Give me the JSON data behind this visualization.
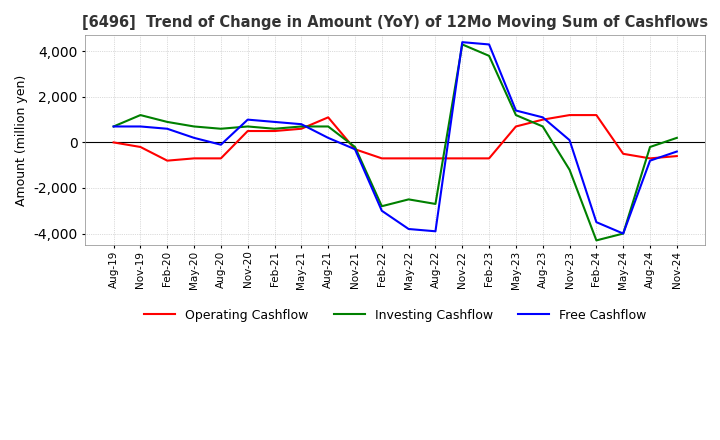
{
  "title": "[6496]  Trend of Change in Amount (YoY) of 12Mo Moving Sum of Cashflows",
  "ylabel": "Amount (million yen)",
  "ylim": [
    -4500,
    4700
  ],
  "yticks": [
    -4000,
    -2000,
    0,
    2000,
    4000
  ],
  "background_color": "#ffffff",
  "grid_color": "#bbbbbb",
  "x_labels": [
    "Aug-19",
    "Nov-19",
    "Feb-20",
    "May-20",
    "Aug-20",
    "Nov-20",
    "Feb-21",
    "May-21",
    "Aug-21",
    "Nov-21",
    "Feb-22",
    "May-22",
    "Aug-22",
    "Nov-22",
    "Feb-23",
    "May-23",
    "Aug-23",
    "Nov-23",
    "Feb-24",
    "May-24",
    "Aug-24",
    "Nov-24"
  ],
  "operating_cashflow": [
    0,
    -200,
    -800,
    -700,
    -700,
    500,
    500,
    600,
    1100,
    -300,
    -700,
    -700,
    -700,
    -700,
    -700,
    700,
    1000,
    1200,
    1200,
    -500,
    -700,
    -600
  ],
  "investing_cashflow": [
    700,
    1200,
    900,
    700,
    600,
    700,
    600,
    700,
    700,
    -200,
    -2800,
    -2500,
    -2700,
    4300,
    3800,
    1200,
    700,
    -1200,
    -4300,
    -4000,
    -200,
    200
  ],
  "free_cashflow": [
    700,
    700,
    600,
    200,
    -100,
    1000,
    900,
    800,
    200,
    -300,
    -3000,
    -3800,
    -3900,
    4400,
    4300,
    1400,
    1100,
    100,
    -3500,
    -4000,
    -800,
    -400
  ],
  "operating_color": "#ff0000",
  "investing_color": "#008000",
  "free_color": "#0000ff",
  "line_width": 1.5
}
